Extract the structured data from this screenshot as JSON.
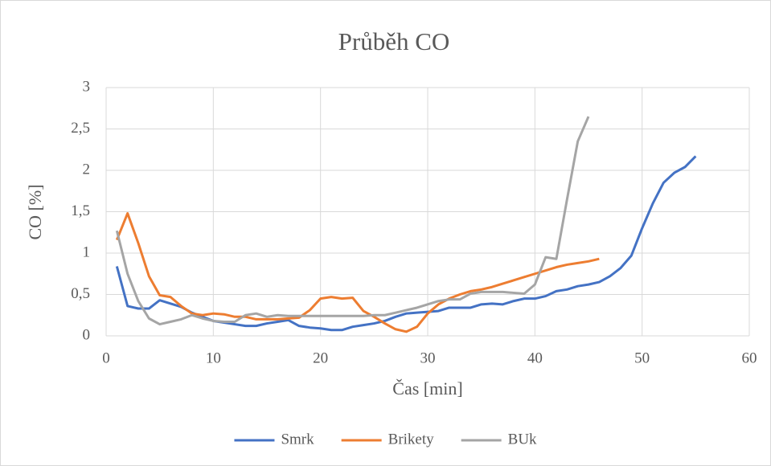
{
  "chart_data": {
    "type": "line",
    "title": "Průběh CO",
    "x_label": "Čas [min]",
    "y_label": "CO [%]",
    "x": [
      1,
      2,
      3,
      4,
      5,
      6,
      7,
      8,
      9,
      10,
      11,
      12,
      13,
      14,
      15,
      16,
      17,
      18,
      19,
      20,
      21,
      22,
      23,
      24,
      25,
      26,
      27,
      28,
      29,
      30,
      31,
      32,
      33,
      34,
      35,
      36,
      37,
      38,
      39,
      40,
      41,
      42,
      43,
      44,
      45,
      46,
      47,
      48,
      49,
      50,
      51,
      52,
      53,
      54,
      55
    ],
    "series": [
      {
        "name": "Smrk",
        "color": "#4472c4",
        "values": [
          0.84,
          0.36,
          0.33,
          0.33,
          0.43,
          0.39,
          0.35,
          0.28,
          0.23,
          0.18,
          0.16,
          0.14,
          0.12,
          0.12,
          0.15,
          0.17,
          0.19,
          0.12,
          0.1,
          0.09,
          0.07,
          0.07,
          0.11,
          0.13,
          0.15,
          0.18,
          0.23,
          0.27,
          0.28,
          0.29,
          0.3,
          0.34,
          0.34,
          0.34,
          0.38,
          0.39,
          0.38,
          0.42,
          0.45,
          0.45,
          0.48,
          0.54,
          0.56,
          0.6,
          0.62,
          0.65,
          0.72,
          0.82,
          0.97,
          1.3,
          1.6,
          1.85,
          1.97,
          2.04,
          2.17
        ]
      },
      {
        "name": "Brikety",
        "color": "#ed7d31",
        "values": [
          1.16,
          1.48,
          1.12,
          0.72,
          0.49,
          0.47,
          0.36,
          0.27,
          0.25,
          0.27,
          0.26,
          0.23,
          0.23,
          0.2,
          0.2,
          0.2,
          0.21,
          0.22,
          0.31,
          0.45,
          0.47,
          0.45,
          0.46,
          0.3,
          0.23,
          0.15,
          0.08,
          0.05,
          0.11,
          0.27,
          0.38,
          0.45,
          0.5,
          0.54,
          0.56,
          0.59,
          0.63,
          0.67,
          0.71,
          0.75,
          0.79,
          0.83,
          0.86,
          0.88,
          0.9,
          0.93,
          null,
          null,
          null,
          null,
          null,
          null,
          null,
          null,
          null
        ]
      },
      {
        "name": "BUk",
        "color": "#a5a5a5",
        "values": [
          1.27,
          0.75,
          0.42,
          0.21,
          0.14,
          0.17,
          0.2,
          0.25,
          0.21,
          0.18,
          0.17,
          0.17,
          0.25,
          0.27,
          0.23,
          0.25,
          0.24,
          0.24,
          0.24,
          0.24,
          0.24,
          0.24,
          0.24,
          0.24,
          0.25,
          0.25,
          0.28,
          0.31,
          0.34,
          0.38,
          0.42,
          0.44,
          0.44,
          0.51,
          0.53,
          0.53,
          0.53,
          0.52,
          0.51,
          0.62,
          0.95,
          0.93,
          1.65,
          2.35,
          2.65,
          null,
          null,
          null,
          null,
          null,
          null,
          null,
          null,
          null,
          null
        ]
      }
    ],
    "xlim": [
      0,
      60
    ],
    "xticks": [
      0,
      10,
      20,
      30,
      40,
      50,
      60
    ],
    "ylim": [
      0,
      3
    ],
    "yticks": [
      0,
      {
        "value": 0.5,
        "label": "0,5"
      },
      1,
      {
        "value": 1.5,
        "label": "1,5"
      },
      2,
      {
        "value": 2.5,
        "label": "2,5"
      },
      3
    ],
    "grid": true,
    "legend": "bottom"
  }
}
